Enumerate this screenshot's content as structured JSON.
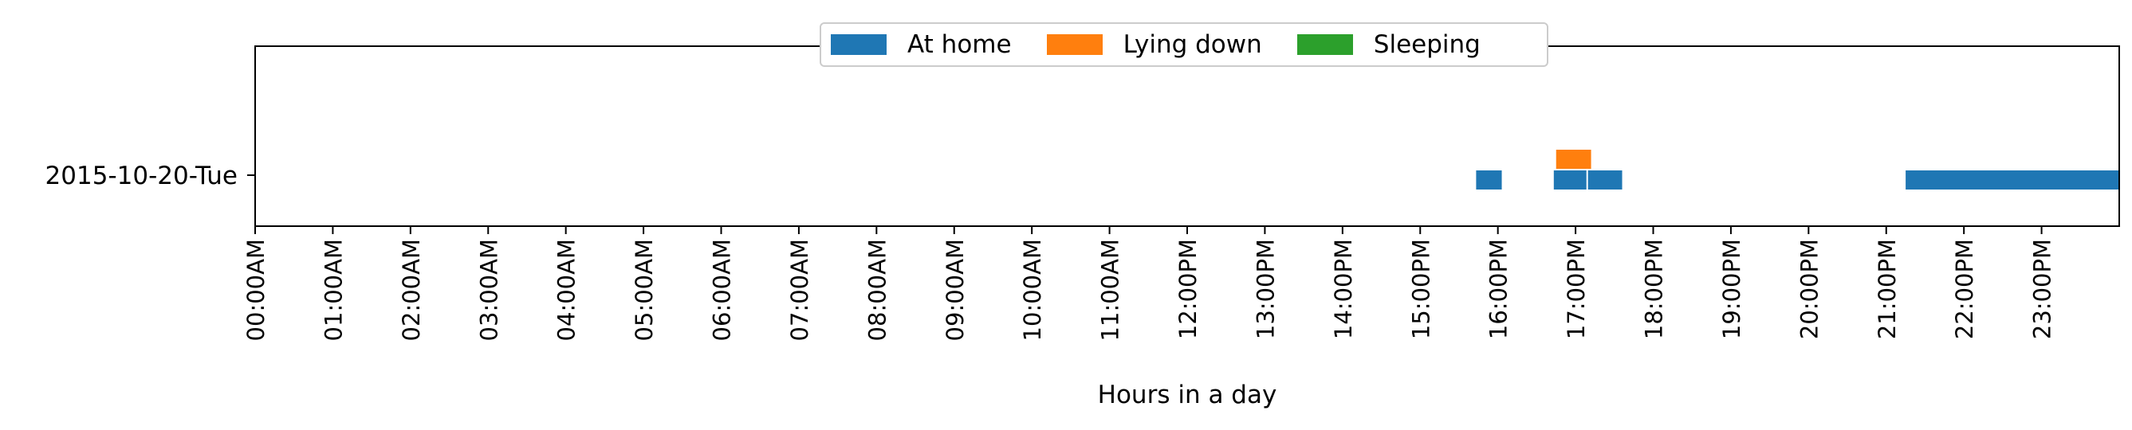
{
  "chart_data": {
    "type": "timeline",
    "title": "",
    "xlabel": "Hours in a day",
    "ylabel": "",
    "xlim": [
      0,
      24
    ],
    "xtick_labels": [
      "00:00AM",
      "01:00AM",
      "02:00AM",
      "03:00AM",
      "04:00AM",
      "05:00AM",
      "06:00AM",
      "07:00AM",
      "08:00AM",
      "09:00AM",
      "10:00AM",
      "11:00AM",
      "12:00PM",
      "13:00PM",
      "14:00PM",
      "15:00PM",
      "16:00PM",
      "17:00PM",
      "18:00PM",
      "19:00PM",
      "20:00PM",
      "21:00PM",
      "22:00PM",
      "23:00PM"
    ],
    "ytick_labels": [
      "2015-10-20-Tue"
    ],
    "grid": false,
    "legend_position": "top-center",
    "series": [
      {
        "name": "At home",
        "color": "#1f77b4",
        "intervals": [
          [
            15.72,
            16.05
          ],
          [
            16.72,
            17.14
          ],
          [
            17.16,
            17.6
          ],
          [
            21.25,
            24.0
          ]
        ]
      },
      {
        "name": "Lying down",
        "color": "#ff7f0e",
        "intervals": [
          [
            16.75,
            17.2
          ]
        ]
      },
      {
        "name": "Sleeping",
        "color": "#2ca02c",
        "intervals": []
      }
    ]
  }
}
